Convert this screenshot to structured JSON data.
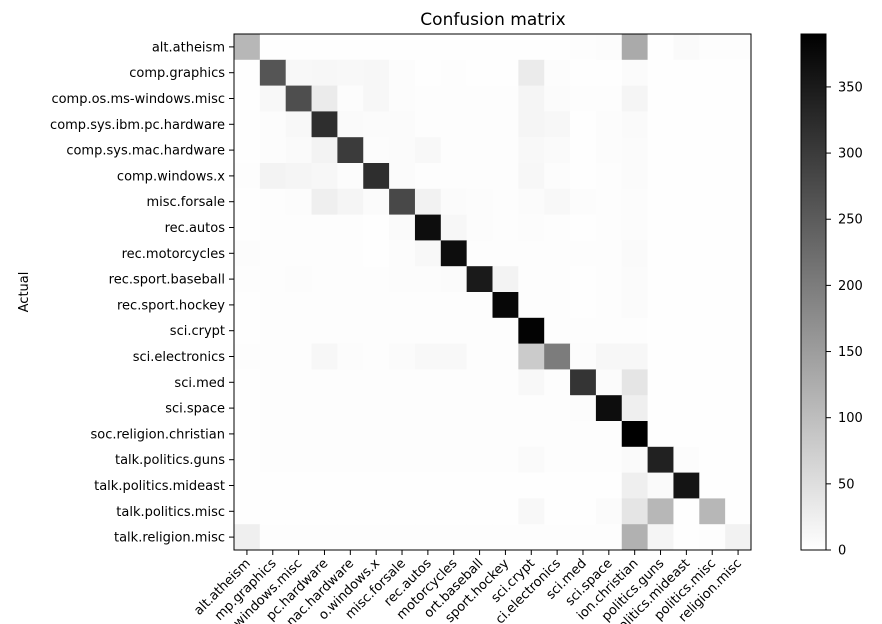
{
  "chart_data": {
    "type": "heatmap",
    "title": "Confusion matrix",
    "ylabel": "Actual",
    "xlabel": "",
    "labels": [
      "alt.atheism",
      "comp.graphics",
      "comp.os.ms-windows.misc",
      "comp.sys.ibm.pc.hardware",
      "comp.sys.mac.hardware",
      "comp.windows.x",
      "misc.forsale",
      "rec.autos",
      "rec.motorcycles",
      "rec.sport.baseball",
      "rec.sport.hockey",
      "sci.crypt",
      "sci.electronics",
      "sci.med",
      "sci.space",
      "soc.religion.christian",
      "talk.politics.guns",
      "talk.politics.mideast",
      "talk.politics.misc",
      "talk.religion.misc"
    ],
    "x_tick_labels_visible": [
      "alt.atheism",
      "mp.graphics",
      "windows.misc",
      "pc.hardware",
      "nac.hardware",
      "o.windows.x",
      "misc.forsale",
      "rec.autos",
      "motorcycles",
      "ort.baseball",
      "sport.hockey",
      "sci.crypt",
      "ci.electronics",
      "sci.med",
      "sci.space",
      "ion.christian",
      "politics.guns",
      "olitics.mideast",
      "politics.misc",
      "religion.misc"
    ],
    "matrix": [
      [
        110,
        2,
        2,
        2,
        2,
        2,
        2,
        2,
        2,
        2,
        2,
        2,
        2,
        3,
        4,
        130,
        2,
        8,
        3,
        3
      ],
      [
        2,
        260,
        10,
        12,
        10,
        12,
        5,
        2,
        3,
        2,
        2,
        30,
        4,
        2,
        2,
        6,
        2,
        2,
        2,
        2
      ],
      [
        2,
        10,
        270,
        30,
        5,
        12,
        5,
        3,
        3,
        3,
        3,
        15,
        6,
        3,
        3,
        15,
        2,
        2,
        2,
        2
      ],
      [
        2,
        5,
        10,
        320,
        8,
        6,
        6,
        3,
        3,
        3,
        3,
        15,
        12,
        2,
        4,
        8,
        2,
        2,
        2,
        2
      ],
      [
        2,
        5,
        8,
        18,
        300,
        4,
        6,
        10,
        3,
        3,
        3,
        10,
        8,
        2,
        4,
        6,
        2,
        2,
        2,
        2
      ],
      [
        3,
        18,
        15,
        12,
        5,
        320,
        6,
        3,
        3,
        3,
        3,
        12,
        4,
        2,
        3,
        6,
        2,
        2,
        2,
        2
      ],
      [
        2,
        3,
        5,
        25,
        15,
        6,
        280,
        20,
        6,
        4,
        3,
        6,
        10,
        4,
        3,
        4,
        2,
        2,
        2,
        2
      ],
      [
        2,
        3,
        3,
        3,
        3,
        2,
        8,
        370,
        12,
        4,
        3,
        4,
        3,
        2,
        3,
        4,
        2,
        2,
        2,
        2
      ],
      [
        5,
        3,
        3,
        3,
        3,
        2,
        4,
        10,
        370,
        3,
        3,
        3,
        3,
        3,
        3,
        8,
        2,
        2,
        2,
        2
      ],
      [
        3,
        3,
        5,
        3,
        3,
        3,
        4,
        5,
        6,
        350,
        18,
        3,
        3,
        2,
        3,
        6,
        2,
        2,
        2,
        2
      ],
      [
        2,
        3,
        3,
        3,
        3,
        3,
        3,
        3,
        3,
        3,
        380,
        3,
        3,
        2,
        3,
        6,
        2,
        2,
        2,
        2
      ],
      [
        2,
        3,
        3,
        3,
        3,
        3,
        3,
        3,
        3,
        3,
        3,
        385,
        3,
        3,
        3,
        3,
        2,
        2,
        2,
        2
      ],
      [
        3,
        3,
        3,
        12,
        5,
        3,
        6,
        10,
        10,
        3,
        3,
        80,
        200,
        5,
        12,
        12,
        2,
        2,
        2,
        2
      ],
      [
        2,
        3,
        3,
        3,
        3,
        3,
        3,
        3,
        3,
        3,
        3,
        10,
        3,
        310,
        6,
        40,
        2,
        2,
        2,
        2
      ],
      [
        2,
        3,
        3,
        3,
        3,
        3,
        3,
        3,
        3,
        3,
        3,
        3,
        3,
        4,
        370,
        25,
        2,
        2,
        2,
        2
      ],
      [
        2,
        3,
        3,
        3,
        3,
        3,
        3,
        3,
        3,
        3,
        3,
        3,
        3,
        3,
        3,
        390,
        2,
        2,
        2,
        2
      ],
      [
        2,
        3,
        3,
        3,
        3,
        3,
        3,
        3,
        3,
        3,
        3,
        8,
        3,
        3,
        3,
        8,
        340,
        4,
        2,
        2
      ],
      [
        2,
        2,
        2,
        2,
        2,
        2,
        2,
        2,
        2,
        2,
        2,
        2,
        2,
        2,
        2,
        25,
        8,
        360,
        2,
        2
      ],
      [
        2,
        2,
        2,
        2,
        2,
        2,
        2,
        2,
        2,
        2,
        2,
        10,
        2,
        2,
        6,
        40,
        110,
        2,
        110,
        2
      ],
      [
        25,
        3,
        3,
        3,
        3,
        3,
        3,
        3,
        3,
        3,
        3,
        3,
        3,
        3,
        3,
        120,
        15,
        2,
        3,
        20
      ]
    ],
    "colorbar": {
      "colormap": "gray_r",
      "range": [
        0,
        390
      ],
      "ticks": [
        0,
        50,
        100,
        150,
        200,
        250,
        300,
        350
      ]
    },
    "grid": false,
    "legend": "colorbar-right"
  }
}
